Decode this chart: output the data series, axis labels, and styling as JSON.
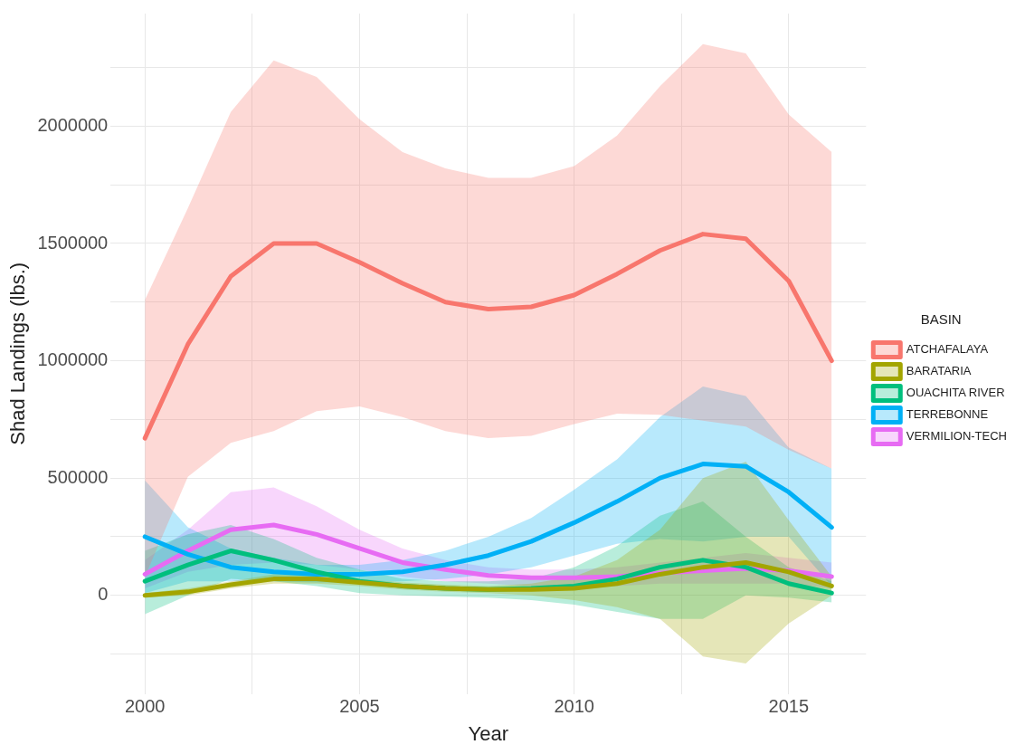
{
  "chart_data": {
    "type": "line",
    "xlabel": "Year",
    "ylabel": "Shad Landings (lbs.)",
    "legend_title": "BASIN",
    "legend": "right",
    "grid": true,
    "marker": "none",
    "line_style": "solid",
    "x": [
      2000,
      2001,
      2002,
      2003,
      2004,
      2005,
      2006,
      2007,
      2008,
      2009,
      2010,
      2011,
      2012,
      2013,
      2014,
      2015,
      2016
    ],
    "xlim": [
      1999.2,
      2016.8
    ],
    "xticks": [
      2000,
      {
        "value": 2002.5,
        "label": null
      },
      2005,
      {
        "value": 2007.5,
        "label": null
      },
      2010,
      {
        "value": 2012.5,
        "label": null
      },
      2015
    ],
    "ylim": [
      -420000,
      2480000
    ],
    "yticks": [
      {
        "value": -250000,
        "label": null
      },
      0,
      {
        "value": 250000,
        "label": null
      },
      500000,
      {
        "value": 750000,
        "label": null
      },
      1000000,
      {
        "value": 1250000,
        "label": null
      },
      1500000,
      {
        "value": 1750000,
        "label": null
      },
      2000000,
      {
        "value": 2250000,
        "label": null
      }
    ],
    "series": [
      {
        "name": "ATCHAFALAYA",
        "color": "#f8766d",
        "values": [
          670000,
          1070000,
          1360000,
          1500000,
          1500000,
          1420000,
          1330000,
          1250000,
          1220000,
          1230000,
          1280000,
          1370000,
          1470000,
          1540000,
          1520000,
          1340000,
          1000000
        ],
        "lower": [
          80000,
          505000,
          650000,
          700000,
          785000,
          805000,
          760000,
          700000,
          670000,
          680000,
          730000,
          775000,
          770000,
          745000,
          720000,
          620000,
          540000
        ],
        "upper": [
          1260000,
          1650000,
          2060000,
          2280000,
          2210000,
          2030000,
          1890000,
          1820000,
          1780000,
          1780000,
          1830000,
          1960000,
          2170000,
          2350000,
          2310000,
          2050000,
          1890000
        ]
      },
      {
        "name": "BARATARIA",
        "color": "#a3a500",
        "values": [
          0,
          15000,
          45000,
          70000,
          70000,
          55000,
          40000,
          30000,
          25000,
          25000,
          30000,
          50000,
          90000,
          120000,
          140000,
          100000,
          40000
        ],
        "lower": [
          -10000,
          0,
          30000,
          50000,
          50000,
          40000,
          25000,
          15000,
          10000,
          0,
          -20000,
          -50000,
          -100000,
          -260000,
          -290000,
          -120000,
          0
        ],
        "upper": [
          10000,
          30000,
          60000,
          90000,
          90000,
          70000,
          55000,
          45000,
          40000,
          50000,
          80000,
          150000,
          280000,
          500000,
          570000,
          320000,
          80000
        ]
      },
      {
        "name": "OUACHITA RIVER",
        "color": "#00bf7d",
        "values": [
          60000,
          130000,
          190000,
          150000,
          100000,
          60000,
          40000,
          30000,
          25000,
          30000,
          40000,
          70000,
          120000,
          150000,
          120000,
          50000,
          10000
        ],
        "lower": [
          -80000,
          0,
          70000,
          60000,
          40000,
          10000,
          0,
          -5000,
          -10000,
          -20000,
          -40000,
          -70000,
          -100000,
          -100000,
          0,
          -10000,
          -30000
        ],
        "upper": [
          190000,
          260000,
          300000,
          240000,
          160000,
          110000,
          70000,
          60000,
          60000,
          70000,
          120000,
          210000,
          340000,
          400000,
          250000,
          120000,
          60000
        ]
      },
      {
        "name": "TERREBONNE",
        "color": "#00b0f6",
        "values": [
          250000,
          175000,
          120000,
          100000,
          90000,
          90000,
          100000,
          130000,
          170000,
          230000,
          310000,
          400000,
          500000,
          560000,
          550000,
          440000,
          290000
        ],
        "lower": [
          10000,
          60000,
          60000,
          60000,
          55000,
          55000,
          60000,
          70000,
          90000,
          120000,
          170000,
          220000,
          240000,
          230000,
          250000,
          250000,
          40000
        ],
        "upper": [
          490000,
          290000,
          200000,
          160000,
          130000,
          130000,
          150000,
          190000,
          250000,
          330000,
          450000,
          580000,
          760000,
          890000,
          850000,
          630000,
          540000
        ]
      },
      {
        "name": "VERMILION-TECH",
        "color": "#e76bf3",
        "values": [
          90000,
          190000,
          280000,
          300000,
          260000,
          200000,
          140000,
          110000,
          85000,
          75000,
          75000,
          80000,
          95000,
          105000,
          115000,
          105000,
          80000
        ],
        "lower": [
          30000,
          100000,
          130000,
          140000,
          130000,
          110000,
          80000,
          60000,
          50000,
          40000,
          40000,
          40000,
          50000,
          50000,
          50000,
          50000,
          30000
        ],
        "upper": [
          150000,
          280000,
          440000,
          460000,
          380000,
          280000,
          200000,
          150000,
          120000,
          110000,
          110000,
          120000,
          140000,
          160000,
          180000,
          160000,
          140000
        ]
      }
    ]
  }
}
